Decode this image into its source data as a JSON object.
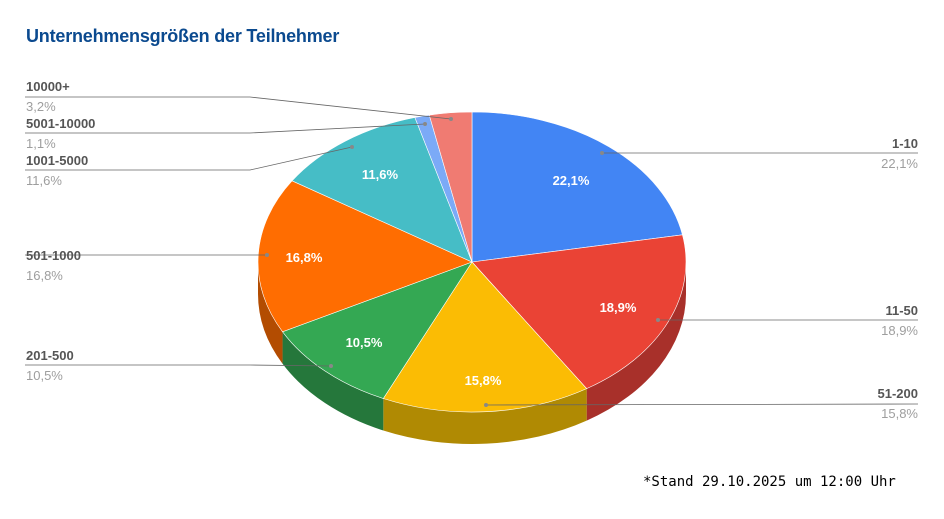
{
  "chart_data": {
    "type": "pie",
    "style": "3d",
    "title": "Unternehmensgrößen der Teilnehmer",
    "categories": [
      "1-10",
      "11-50",
      "51-200",
      "201-500",
      "501-1000",
      "1001-5000",
      "5001-10000",
      "10000+"
    ],
    "values": [
      22.1,
      18.9,
      15.8,
      10.5,
      16.8,
      11.6,
      1.1,
      3.2
    ],
    "value_labels": [
      "22,1%",
      "18,9%",
      "15,8%",
      "10,5%",
      "16,8%",
      "11,6%",
      "1,1%",
      "3,2%"
    ],
    "colors": [
      "#4285f4",
      "#ea4335",
      "#fbbc04",
      "#34a853",
      "#ff6d01",
      "#46bdc6",
      "#7baaf7",
      "#f07b72"
    ],
    "side_colors": [
      "#2a5fb0",
      "#a8302a",
      "#b08a03",
      "#25773b",
      "#b34c01",
      "#2f858c",
      "#5577b0",
      "#a8564f"
    ],
    "legend": "labels with leader lines"
  },
  "footnote": "*Stand 29.10.2025 um 12:00 Uhr"
}
